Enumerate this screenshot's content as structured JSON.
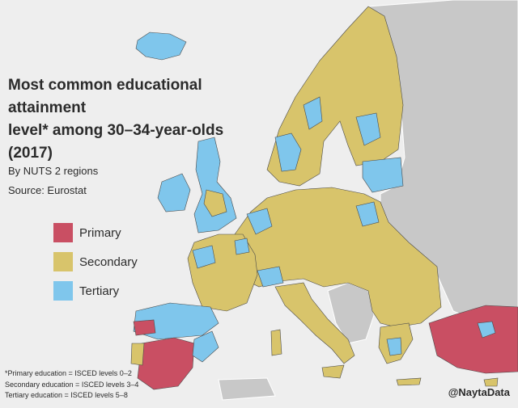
{
  "title_lines": [
    "Most common educational attainment",
    "level* among 30–34-year-olds",
    "(2017)"
  ],
  "subtitle_regions": "By NUTS 2 regions",
  "source": "Source: Eurostat",
  "legend": [
    {
      "label": "Primary",
      "color": "#c94f63"
    },
    {
      "label": "Secondary",
      "color": "#d8c46b"
    },
    {
      "label": "Tertiary",
      "color": "#7fc6ec"
    }
  ],
  "notes": [
    "*Primary education = ISCED levels 0–2",
    "Secondary education = ISCED levels 3–4",
    "Tertiary education = ISCED levels 5–8"
  ],
  "handle": "@NaytaData",
  "colors": {
    "sea": "#eeeeee",
    "no_data": "#c8c8c8",
    "border": "#4a4a4a"
  }
}
